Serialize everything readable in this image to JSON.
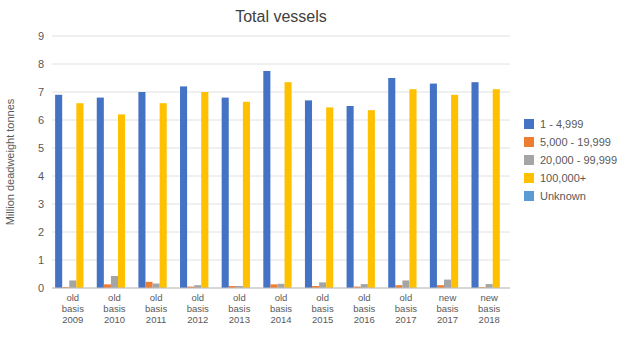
{
  "chart_data": {
    "type": "bar",
    "title": "Total vessels",
    "y_label": "Million deadweight tonnes",
    "categories": [
      "old\nbasis\n\n2009",
      "old\nbasis\n\n2010",
      "old\nbasis\n\n2011",
      "old\nbasis\n\n2012",
      "old\nbasis\n\n2013",
      "old\nbasis\n\n2014",
      "old\nbasis\n\n2015",
      "old\nbasis\n\n2016",
      "old\nbasis\n\n2017",
      "new\nbasis\n\n2017",
      "new\nbasis\n\n2018"
    ],
    "series": [
      {
        "name": "1 - 4,999",
        "color": "#4472C4",
        "values": [
          6.9,
          6.8,
          7.0,
          7.2,
          6.8,
          7.75,
          6.7,
          6.5,
          7.5,
          7.3,
          7.35
        ]
      },
      {
        "name": "5,000 - 19,999",
        "color": "#ED7D31",
        "values": [
          0.03,
          0.13,
          0.22,
          0.05,
          0.07,
          0.13,
          0.07,
          0.05,
          0.1,
          0.1,
          0.03
        ]
      },
      {
        "name": "20,000 - 99,999",
        "color": "#A5A5A5",
        "values": [
          0.27,
          0.43,
          0.16,
          0.1,
          0.07,
          0.15,
          0.2,
          0.14,
          0.27,
          0.3,
          0.14
        ]
      },
      {
        "name": "100,000+",
        "color": "#FFC000",
        "values": [
          6.6,
          6.2,
          6.6,
          7.0,
          6.65,
          7.35,
          6.45,
          6.35,
          7.1,
          6.9,
          7.1
        ]
      },
      {
        "name": "Unknown",
        "color": "#5B9BD5",
        "values": [
          0.0,
          0.0,
          0.0,
          0.0,
          0.0,
          0.0,
          0.0,
          0.0,
          0.0,
          0.0,
          0.0
        ]
      }
    ],
    "ylim": [
      0,
      9
    ],
    "yticks": [
      0,
      1,
      2,
      3,
      4,
      5,
      6,
      7,
      8,
      9
    ],
    "grid": true,
    "legend": "right"
  }
}
